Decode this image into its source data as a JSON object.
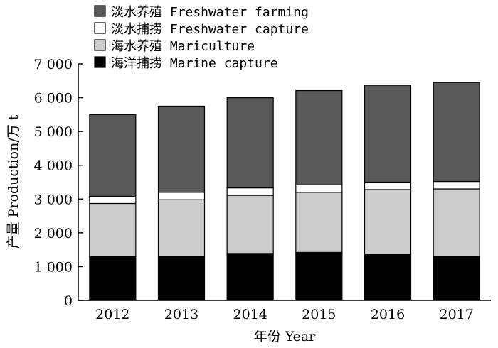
{
  "chart_data": {
    "type": "bar",
    "stacked": true,
    "xlabel": "年份 Year",
    "ylabel": "产量 Production/万 t",
    "ylim": [
      0,
      7000
    ],
    "y_ticks": [
      0,
      1000,
      2000,
      3000,
      4000,
      5000,
      6000,
      7000
    ],
    "y_tick_labels": [
      "0",
      "1 000",
      "2 000",
      "3 000",
      "4 000",
      "5 000",
      "6 000",
      "7 000"
    ],
    "categories": [
      "2012",
      "2013",
      "2014",
      "2015",
      "2016",
      "2017"
    ],
    "series": [
      {
        "name": "海洋捕捞 Marine capture",
        "color": "#000000",
        "values": [
          1300,
          1310,
          1390,
          1420,
          1370,
          1310
        ]
      },
      {
        "name": "海水养殖 Mariculture",
        "color": "#cccccc",
        "values": [
          1570,
          1670,
          1720,
          1780,
          1910,
          1990
        ]
      },
      {
        "name": "淡水捕捞 Freshwater capture",
        "color": "#ffffff",
        "values": [
          210,
          220,
          220,
          220,
          220,
          220
        ]
      },
      {
        "name": "淡水养殖 Freshwater farming",
        "color": "#595959",
        "values": [
          2420,
          2550,
          2670,
          2790,
          2870,
          2930
        ]
      }
    ],
    "legend": {
      "position": "top-left",
      "order": [
        3,
        2,
        1,
        0
      ]
    },
    "grid": false
  }
}
